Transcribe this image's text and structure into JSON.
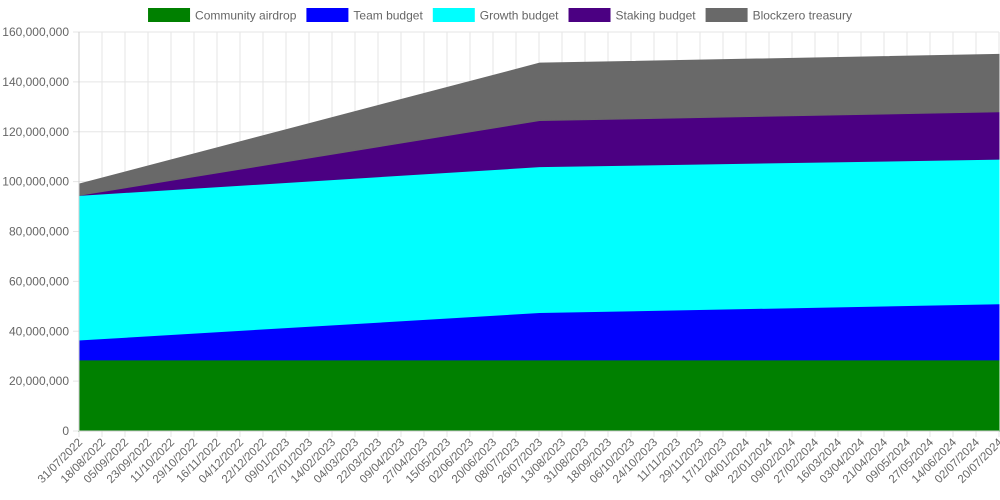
{
  "chart_data": {
    "type": "area",
    "stacked": true,
    "legend_position": "top",
    "grid": true,
    "ylim": [
      0,
      160000000
    ],
    "y_ticks": [
      "0",
      "20,000,000",
      "40,000,000",
      "60,000,000",
      "80,000,000",
      "100,000,000",
      "120,000,000",
      "140,000,000",
      "160,000,000"
    ],
    "x_ticks": [
      "31/07/2022",
      "18/08/2022",
      "05/09/2022",
      "23/09/2022",
      "11/10/2022",
      "29/10/2022",
      "16/11/2022",
      "04/12/2022",
      "22/12/2022",
      "09/01/2023",
      "27/01/2023",
      "14/02/2023",
      "04/03/2023",
      "22/03/2023",
      "09/04/2023",
      "27/04/2023",
      "15/05/2023",
      "02/06/2023",
      "20/06/2023",
      "08/07/2023",
      "26/07/2023",
      "13/08/2023",
      "31/08/2023",
      "18/09/2023",
      "06/10/2023",
      "24/10/2023",
      "11/11/2023",
      "29/11/2023",
      "17/12/2023",
      "04/01/2024",
      "22/01/2024",
      "09/02/2024",
      "27/02/2024",
      "16/03/2024",
      "03/04/2024",
      "21/04/2024",
      "09/05/2024",
      "27/05/2024",
      "14/06/2024",
      "02/07/2024",
      "20/07/2024"
    ],
    "x": [
      "31/07/2022",
      "01/08/2023",
      "31/07/2024"
    ],
    "series": [
      {
        "name": "Community airdrop",
        "color": "#008000",
        "values": [
          28500000,
          28500000,
          28500000
        ]
      },
      {
        "name": "Team budget",
        "color": "#0000ff",
        "values": [
          8000000,
          19000000,
          22500000
        ]
      },
      {
        "name": "Growth budget",
        "color": "#00ffff",
        "values": [
          58000000,
          58500000,
          58000000
        ]
      },
      {
        "name": "Staking budget",
        "color": "#4b0082",
        "values": [
          0,
          18500000,
          19000000
        ]
      },
      {
        "name": "Blockzero treasury",
        "color": "#696969",
        "values": [
          4500000,
          23000000,
          23000000
        ]
      }
    ]
  }
}
